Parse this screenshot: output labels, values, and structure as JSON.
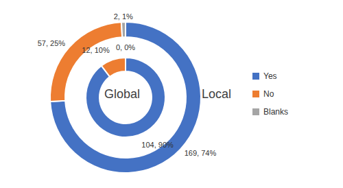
{
  "chart_data": {
    "type": "pie",
    "categories": [
      "Yes",
      "No",
      "Blanks"
    ],
    "colors": [
      "#4472C4",
      "#ED7D31",
      "#A5A5A5"
    ],
    "series": [
      {
        "name": "Local",
        "values": [
          169,
          57,
          2
        ],
        "value_labels": [
          "169, 74%",
          "57, 25%",
          "2, 1%"
        ]
      },
      {
        "name": "Global",
        "values": [
          104,
          12,
          0
        ],
        "value_labels": [
          "104, 90%",
          "12, 10%",
          "0, 0%"
        ]
      }
    ],
    "data_labels": true,
    "legend": "right"
  }
}
